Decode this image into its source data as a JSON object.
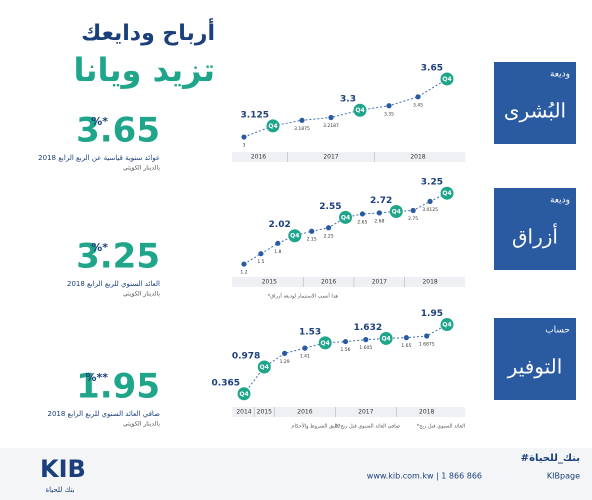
{
  "header": {
    "line1": "أرباح ودايعك",
    "line2": "تزيد ويانا"
  },
  "panels": [
    {
      "rate": "3.65",
      "percent": "%*",
      "caption": "عوائد سنوية قياسية عن الربع الرابع 2018",
      "currency": "بالدينار الكويتي",
      "kind": "وديعة",
      "name": "البُشرى"
    },
    {
      "rate": "3.25",
      "percent": "%*",
      "caption": "العائد السنوي للربع الرابع 2018",
      "currency": "بالدينار الكويتي",
      "kind": "وديعة",
      "name": "أزراق"
    },
    {
      "rate": "1.95",
      "percent": "%**",
      "caption": "صافي العائد السنوي للربع الرابع 2018",
      "currency": "بالدينار الكويتي",
      "kind": "حساب",
      "name": "التوفير"
    }
  ],
  "notes": {
    "azraq": "*هذا أنسب الاستثمار لوديعة أزراق",
    "tawfeer1": "*العائد السنوي قبل ربح",
    "tawfeer2": "**صافي العائد السنوي قبل ربح",
    "tawfeer3": "تطبق الشروط والأحكام"
  },
  "footer": {
    "hashtag": "#بنك_للحياة",
    "contact": "www.kib.com.kw | 1 866 866",
    "social": "KIBpage",
    "logo": "KIB",
    "slogan": "بنك للحياة"
  },
  "chart_data": [
    {
      "type": "line",
      "color": "#3a6fb5",
      "highlight_color": "#1fa58a",
      "highlight_label": "Q4",
      "ylim": [
        2.9,
        3.75
      ],
      "categories": [
        "2016",
        "2016",
        "2017",
        "2017",
        "2017",
        "2018",
        "2018",
        "2018"
      ],
      "values": [
        3.0,
        3.125,
        3.1875,
        3.2187,
        3.3,
        3.35,
        3.45,
        3.65
      ],
      "highlight": [
        false,
        true,
        false,
        false,
        true,
        false,
        false,
        true
      ]
    },
    {
      "type": "line",
      "color": "#3a6fb5",
      "highlight_color": "#1fa58a",
      "highlight_label": "Q4",
      "ylim": [
        1.0,
        3.4
      ],
      "categories": [
        "2015",
        "2015",
        "2015",
        "2015",
        "2016",
        "2016",
        "2016",
        "2017",
        "2017",
        "2017",
        "2018",
        "2018",
        "2018"
      ],
      "values": [
        1.2,
        1.5,
        1.8,
        2.02,
        2.15,
        2.25,
        2.55,
        2.65,
        2.68,
        2.72,
        2.75,
        3.0125,
        3.25
      ],
      "highlight": [
        false,
        false,
        false,
        true,
        false,
        false,
        true,
        false,
        false,
        true,
        false,
        false,
        true
      ]
    },
    {
      "type": "line",
      "color": "#3a6fb5",
      "highlight_color": "#1fa58a",
      "highlight_label": "Q4",
      "ylim": [
        0.2,
        2.1
      ],
      "categories": [
        "2014",
        "2015",
        "2016",
        "2016",
        "2016",
        "2017",
        "2017",
        "2017",
        "2018",
        "2018",
        "2018"
      ],
      "values": [
        0.365,
        0.978,
        1.29,
        1.41,
        1.53,
        1.56,
        1.605,
        1.632,
        1.65,
        1.6875,
        1.95
      ],
      "highlight": [
        true,
        true,
        false,
        false,
        true,
        false,
        false,
        true,
        false,
        false,
        true
      ]
    }
  ]
}
